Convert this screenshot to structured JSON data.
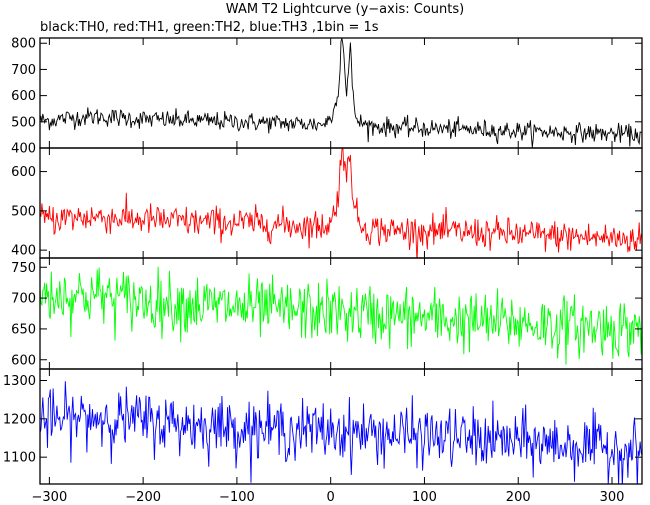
{
  "chart_data": {
    "type": "line",
    "title": "WAM T2 Lightcurve (y−axis: Counts)",
    "subtitle": "black:TH0, red:TH1, green:TH2, blue:TH3 ,1bin = 1s",
    "xlim": [
      -310,
      332
    ],
    "x_ticks": [
      -300,
      -200,
      -100,
      0,
      100,
      200,
      300
    ],
    "x_tick_labels": [
      "−300",
      "−200",
      "−100",
      "0",
      "100",
      "200",
      "300"
    ],
    "shared_x": true,
    "grid": false,
    "panels": [
      {
        "series_name": "TH0",
        "color": "#000000",
        "ylim": [
          400,
          820
        ],
        "y_ticks": [
          400,
          500,
          600,
          700,
          800
        ],
        "y_tick_labels": [
          "400",
          "500",
          "600",
          "700",
          "800"
        ],
        "shape": {
          "x": [
            -300,
            -280,
            -250,
            -200,
            -150,
            -100,
            -50,
            -10,
            0,
            5,
            9,
            11,
            13,
            15,
            17,
            19,
            21,
            23,
            25,
            30,
            40,
            60,
            100,
            150,
            200,
            250,
            300,
            330
          ],
          "y": [
            505,
            515,
            520,
            510,
            505,
            500,
            495,
            490,
            510,
            560,
            660,
            800,
            820,
            700,
            620,
            690,
            800,
            640,
            540,
            500,
            485,
            480,
            475,
            470,
            465,
            460,
            455,
            450
          ]
        },
        "noise_sd": 18
      },
      {
        "series_name": "TH1",
        "color": "#ff0000",
        "ylim": [
          380,
          660
        ],
        "y_ticks": [
          400,
          500,
          600
        ],
        "y_tick_labels": [
          "400",
          "500",
          "600"
        ],
        "shape": {
          "x": [
            -300,
            -250,
            -200,
            -150,
            -100,
            -50,
            -10,
            0,
            5,
            9,
            11,
            13,
            15,
            17,
            19,
            21,
            23,
            25,
            30,
            40,
            60,
            100,
            150,
            200,
            250,
            300,
            330
          ],
          "y": [
            480,
            485,
            478,
            472,
            470,
            465,
            460,
            470,
            500,
            560,
            660,
            660,
            600,
            570,
            640,
            660,
            570,
            510,
            470,
            455,
            450,
            448,
            445,
            440,
            435,
            430,
            428
          ]
        },
        "noise_sd": 20
      },
      {
        "series_name": "TH2",
        "color": "#00ff00",
        "ylim": [
          585,
          765
        ],
        "y_ticks": [
          600,
          650,
          700,
          750
        ],
        "y_tick_labels": [
          "600",
          "650",
          "700",
          "750"
        ],
        "shape": {
          "x": [
            -300,
            -250,
            -200,
            -150,
            -100,
            -50,
            0,
            50,
            100,
            150,
            200,
            250,
            300,
            330
          ],
          "y": [
            705,
            705,
            695,
            690,
            685,
            680,
            678,
            672,
            668,
            662,
            660,
            655,
            652,
            650
          ]
        },
        "noise_sd": 24
      },
      {
        "series_name": "TH3",
        "color": "#0000ff",
        "ylim": [
          1030,
          1330
        ],
        "y_ticks": [
          1100,
          1200,
          1300
        ],
        "y_tick_labels": [
          "1100",
          "1200",
          "1300"
        ],
        "shape": {
          "x": [
            -300,
            -250,
            -200,
            -150,
            -100,
            -50,
            0,
            50,
            100,
            150,
            200,
            250,
            300,
            330
          ],
          "y": [
            1195,
            1205,
            1195,
            1185,
            1178,
            1172,
            1168,
            1162,
            1155,
            1148,
            1140,
            1132,
            1122,
            1115
          ]
        },
        "noise_sd": 38
      }
    ]
  }
}
